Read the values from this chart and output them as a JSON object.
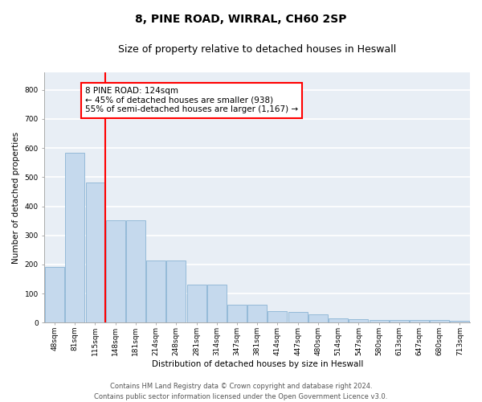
{
  "title_line1": "8, PINE ROAD, WIRRAL, CH60 2SP",
  "title_line2": "Size of property relative to detached houses in Heswall",
  "xlabel": "Distribution of detached houses by size in Heswall",
  "ylabel": "Number of detached properties",
  "categories": [
    "48sqm",
    "81sqm",
    "115sqm",
    "148sqm",
    "181sqm",
    "214sqm",
    "248sqm",
    "281sqm",
    "314sqm",
    "347sqm",
    "381sqm",
    "414sqm",
    "447sqm",
    "480sqm",
    "514sqm",
    "547sqm",
    "580sqm",
    "613sqm",
    "647sqm",
    "680sqm",
    "713sqm"
  ],
  "values": [
    193,
    585,
    481,
    351,
    352,
    214,
    215,
    130,
    130,
    63,
    63,
    40,
    36,
    30,
    15,
    13,
    10,
    10,
    10,
    10,
    7
  ],
  "bar_color": "#c5d9ed",
  "bar_edge_color": "#8ab4d4",
  "redline_x": 2.5,
  "annotation_line1": "8 PINE ROAD: 124sqm",
  "annotation_line2": "← 45% of detached houses are smaller (938)",
  "annotation_line3": "55% of semi-detached houses are larger (1,167) →",
  "annotation_box_color": "white",
  "annotation_box_edge_color": "red",
  "redline_color": "red",
  "ylim": [
    0,
    860
  ],
  "yticks": [
    0,
    100,
    200,
    300,
    400,
    500,
    600,
    700,
    800
  ],
  "background_color": "#e8eef5",
  "grid_color": "white",
  "footer_line1": "Contains HM Land Registry data © Crown copyright and database right 2024.",
  "footer_line2": "Contains public sector information licensed under the Open Government Licence v3.0.",
  "title1_fontsize": 10,
  "title2_fontsize": 9,
  "axis_label_fontsize": 7.5,
  "tick_fontsize": 6.5,
  "annotation_fontsize": 7.5,
  "footer_fontsize": 6
}
